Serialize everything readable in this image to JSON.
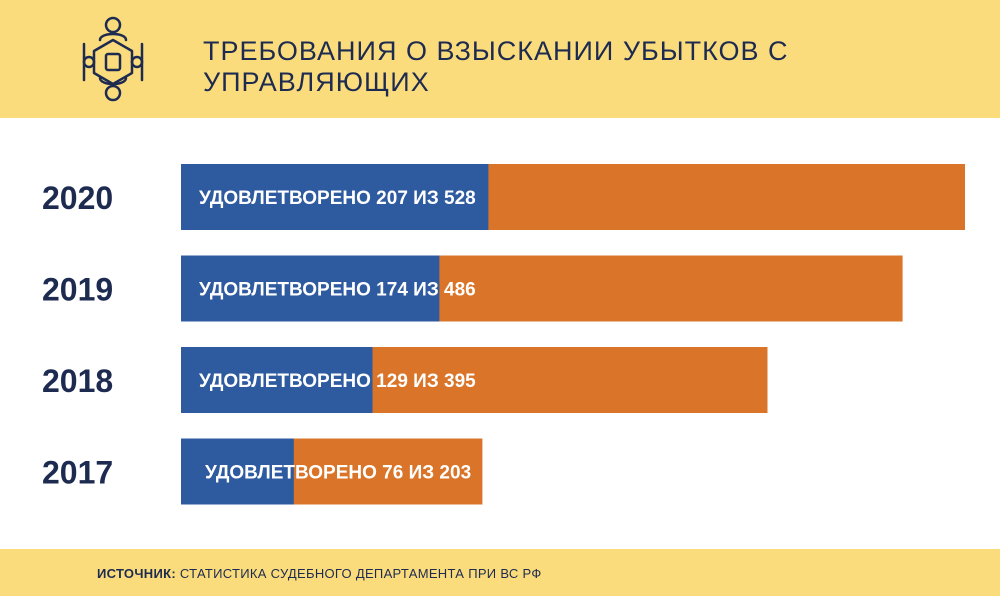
{
  "header": {
    "title": "ТРЕБОВАНИЯ О ВЗЫСКАНИИ УБЫТКОВ С УПРАВЛЯЮЩИХ",
    "logo_icon": "people-around-hexagon-icon"
  },
  "footer": {
    "source_label": "ИСТОЧНИК:",
    "source_text": " СТАТИСТИКА СУДЕБНОГО ДЕПАРТАМЕНТА ПРИ ВС РФ"
  },
  "colors": {
    "satisfied": "#2e5aa0",
    "total": "#d97428",
    "banner": "#fbdc7c",
    "text_dark": "#1e2b50"
  },
  "chart_data": {
    "type": "bar",
    "orientation": "horizontal",
    "stacked": "overlay",
    "categories": [
      "2020",
      "2019",
      "2018",
      "2017"
    ],
    "series": [
      {
        "values": [
          207,
          174,
          129,
          76
        ]
      },
      {
        "values": [
          528,
          486,
          395,
          203
        ]
      }
    ],
    "bar_labels": [
      "УДОВЛЕТВОРЕНО 207 ИЗ 528",
      "УДОВЛЕТВОРЕНО 174 ИЗ 486",
      "УДОВЛЕТВОРЕНО 129 ИЗ 395",
      "УДОВЛЕТВОРЕНО 76 ИЗ 203"
    ],
    "xlim": [
      0,
      528
    ],
    "grid": false,
    "legend": "none"
  }
}
